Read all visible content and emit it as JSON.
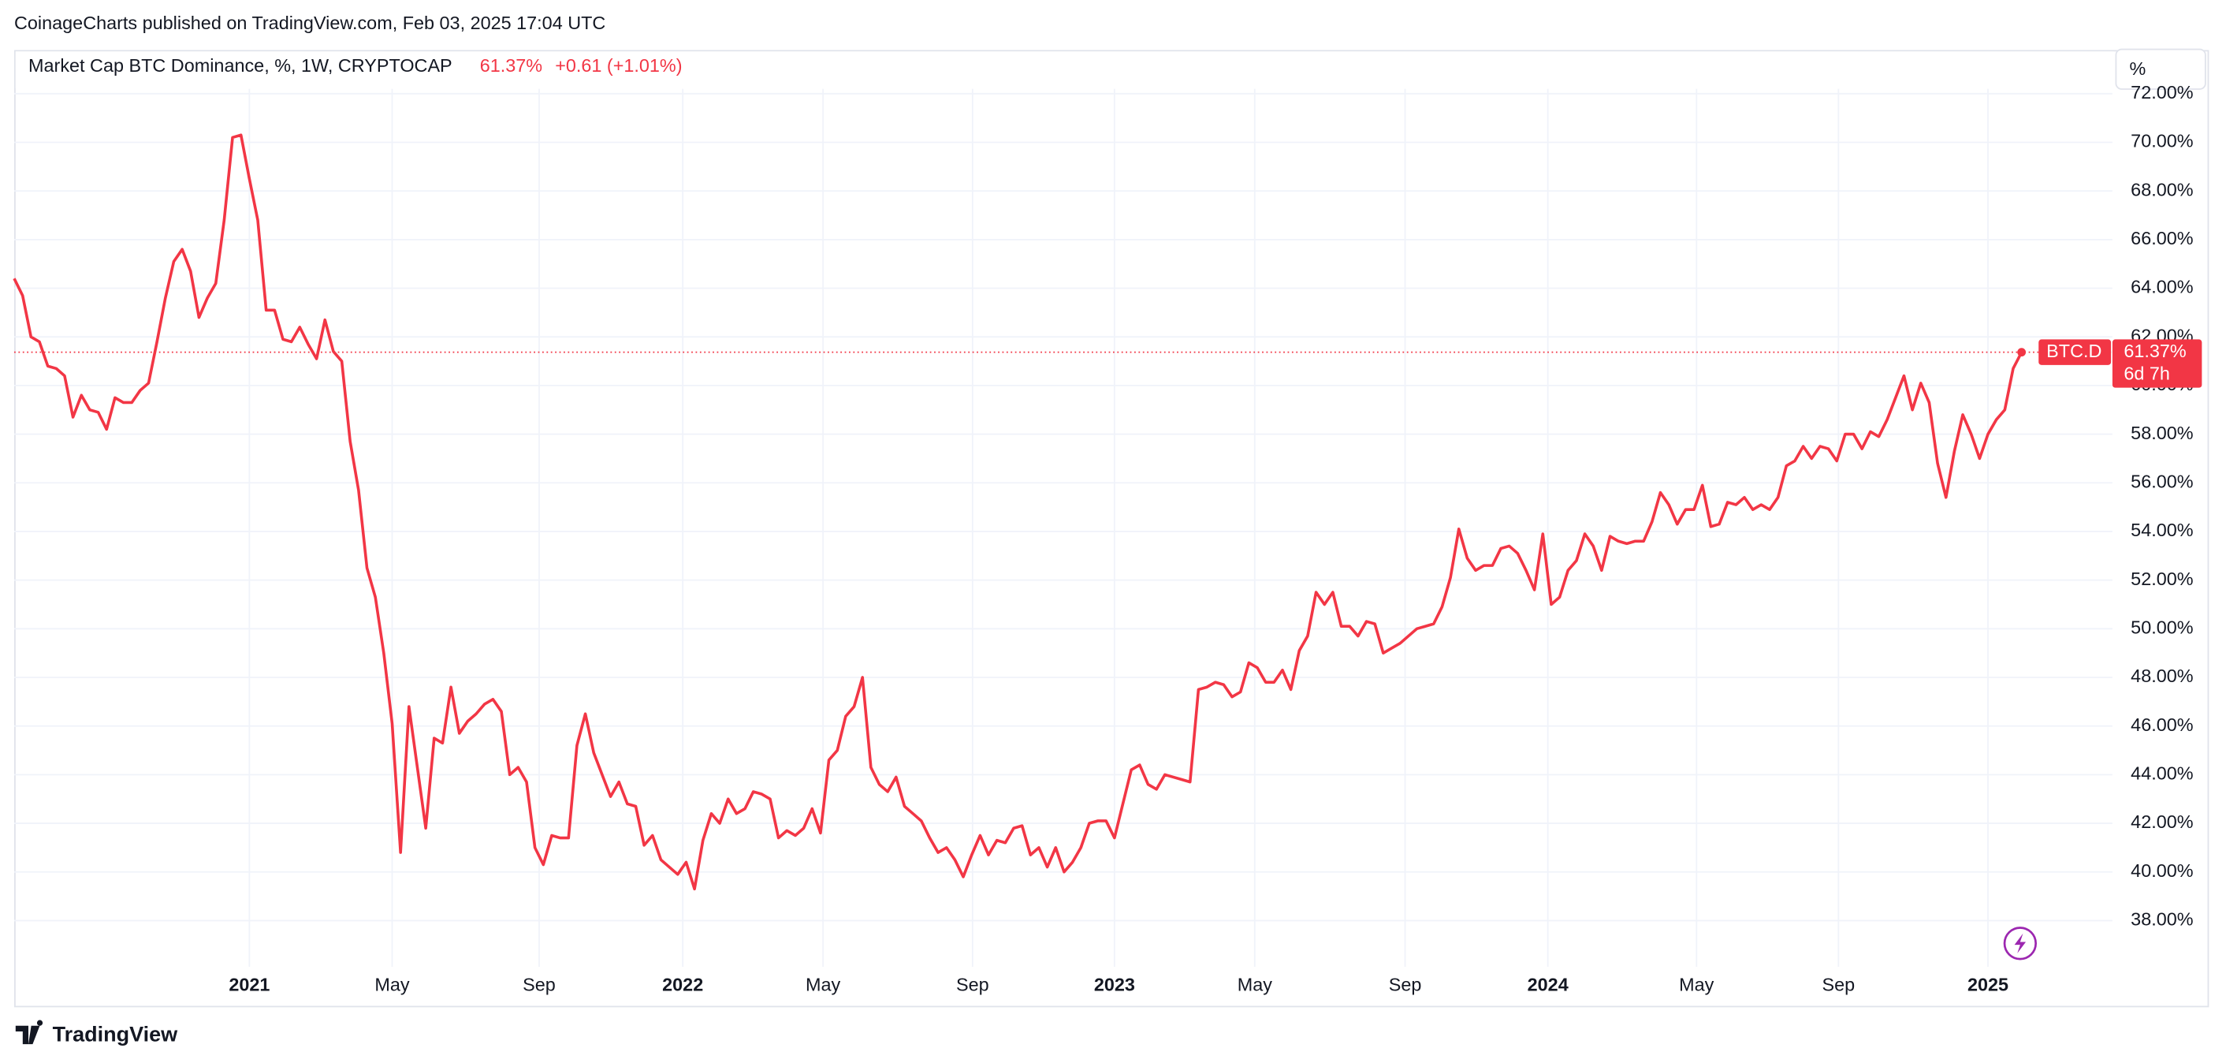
{
  "header": {
    "publisher": "CoinageCharts published on TradingView.com, Feb 03, 2025 17:04 UTC"
  },
  "legend": {
    "symbol": "Market Cap BTC Dominance, %, 1W, CRYPTOCAP",
    "last": "61.37%",
    "change": "+0.61 (+1.01%)"
  },
  "price_label": {
    "ticker": "BTC.D",
    "countdown": "6d 7h"
  },
  "scale_button": "%",
  "footer": {
    "brand": "TradingView"
  },
  "chart_data": {
    "type": "line",
    "series": [
      {
        "name": "BTC.D",
        "color": "#f23645",
        "values": [
          64.4,
          63.7,
          62.0,
          61.8,
          60.8,
          60.7,
          60.4,
          58.7,
          59.6,
          59.0,
          58.9,
          58.2,
          59.5,
          59.3,
          59.3,
          59.8,
          60.1,
          61.8,
          63.6,
          65.1,
          65.6,
          64.7,
          62.8,
          63.6,
          64.2,
          66.8,
          70.2,
          70.3,
          68.5,
          66.8,
          63.1,
          63.1,
          61.9,
          61.8,
          62.4,
          61.7,
          61.1,
          62.7,
          61.4,
          61.0,
          57.7,
          55.7,
          52.5,
          51.3,
          49.0,
          46.1,
          40.8,
          46.8,
          44.3,
          41.8,
          45.5,
          45.3,
          47.6,
          45.7,
          46.2,
          46.5,
          46.9,
          47.1,
          46.6,
          44.0,
          44.3,
          43.7,
          41.0,
          40.3,
          41.5,
          41.4,
          41.4,
          45.2,
          46.5,
          44.9,
          44.0,
          43.1,
          43.7,
          42.8,
          42.7,
          41.1,
          41.5,
          40.5,
          40.2,
          39.9,
          40.4,
          39.3,
          41.3,
          42.4,
          42.0,
          43.0,
          42.4,
          42.6,
          43.3,
          43.2,
          43.0,
          41.4,
          41.7,
          41.5,
          41.8,
          42.6,
          41.6,
          44.6,
          45.0,
          46.4,
          46.8,
          48.0,
          44.3,
          43.6,
          43.3,
          43.9,
          42.7,
          42.4,
          42.1,
          41.4,
          40.8,
          41.0,
          40.5,
          39.8,
          40.7,
          41.5,
          40.7,
          41.3,
          41.2,
          41.8,
          41.9,
          40.7,
          41.0,
          40.2,
          41.0,
          40.0,
          40.4,
          41.0,
          42.0,
          42.1,
          42.1,
          41.4,
          42.8,
          44.2,
          44.4,
          43.6,
          43.4,
          44.0,
          43.9,
          43.8,
          43.7,
          47.5,
          47.6,
          47.8,
          47.7,
          47.2,
          47.4,
          48.6,
          48.4,
          47.8,
          47.8,
          48.3,
          47.5,
          49.1,
          49.7,
          51.5,
          51.0,
          51.5,
          50.1,
          50.1,
          49.7,
          50.3,
          50.2,
          49.0,
          49.2,
          49.4,
          49.7,
          50.0,
          50.1,
          50.2,
          50.9,
          52.1,
          54.1,
          52.9,
          52.4,
          52.6,
          52.6,
          53.3,
          53.4,
          53.1,
          52.4,
          51.6,
          53.9,
          51.0,
          51.3,
          52.4,
          52.8,
          53.9,
          53.4,
          52.4,
          53.8,
          53.6,
          53.5,
          53.6,
          53.6,
          54.4,
          55.6,
          55.1,
          54.3,
          54.9,
          54.9,
          55.9,
          54.2,
          54.3,
          55.2,
          55.1,
          55.4,
          54.9,
          55.1,
          54.9,
          55.4,
          56.7,
          56.9,
          57.5,
          57.0,
          57.5,
          57.4,
          56.9,
          58.0,
          58.0,
          57.4,
          58.1,
          57.9,
          58.6,
          59.5,
          60.4,
          59.0,
          60.1,
          59.3,
          56.8,
          55.4,
          57.3,
          58.8,
          58.0,
          57.0,
          58.0,
          58.6,
          59.0,
          60.7,
          61.37
        ]
      }
    ],
    "xticks": [
      {
        "value": 28,
        "label": "2021"
      },
      {
        "value": 45,
        "label": "May"
      },
      {
        "value": 62.5,
        "label": "Sep"
      },
      {
        "value": 79.6,
        "label": "2022"
      },
      {
        "value": 96.3,
        "label": "May"
      },
      {
        "value": 114.1,
        "label": "Sep"
      },
      {
        "value": 131,
        "label": "2023"
      },
      {
        "value": 147.7,
        "label": "May"
      },
      {
        "value": 165.6,
        "label": "Sep"
      },
      {
        "value": 182.6,
        "label": "2024"
      },
      {
        "value": 200.3,
        "label": "May"
      },
      {
        "value": 217.2,
        "label": "Sep"
      },
      {
        "value": 235,
        "label": "2025"
      }
    ],
    "ylim": [
      36.1,
      72.2
    ],
    "yticks": [
      {
        "value": 38,
        "label": "38.00%"
      },
      {
        "value": 40,
        "label": "40.00%"
      },
      {
        "value": 42,
        "label": "42.00%"
      },
      {
        "value": 44,
        "label": "44.00%"
      },
      {
        "value": 46,
        "label": "46.00%"
      },
      {
        "value": 48,
        "label": "48.00%"
      },
      {
        "value": 50,
        "label": "50.00%"
      },
      {
        "value": 52,
        "label": "52.00%"
      },
      {
        "value": 54,
        "label": "54.00%"
      },
      {
        "value": 56,
        "label": "56.00%"
      },
      {
        "value": 58,
        "label": "58.00%"
      },
      {
        "value": 60,
        "label": "60.00%"
      },
      {
        "value": 62,
        "label": "62.00%"
      },
      {
        "value": 64,
        "label": "64.00%"
      },
      {
        "value": 66,
        "label": "66.00%"
      },
      {
        "value": 68,
        "label": "68.00%"
      },
      {
        "value": 70,
        "label": "70.00%"
      },
      {
        "value": 72,
        "label": "72.00%"
      }
    ],
    "grid": true
  }
}
